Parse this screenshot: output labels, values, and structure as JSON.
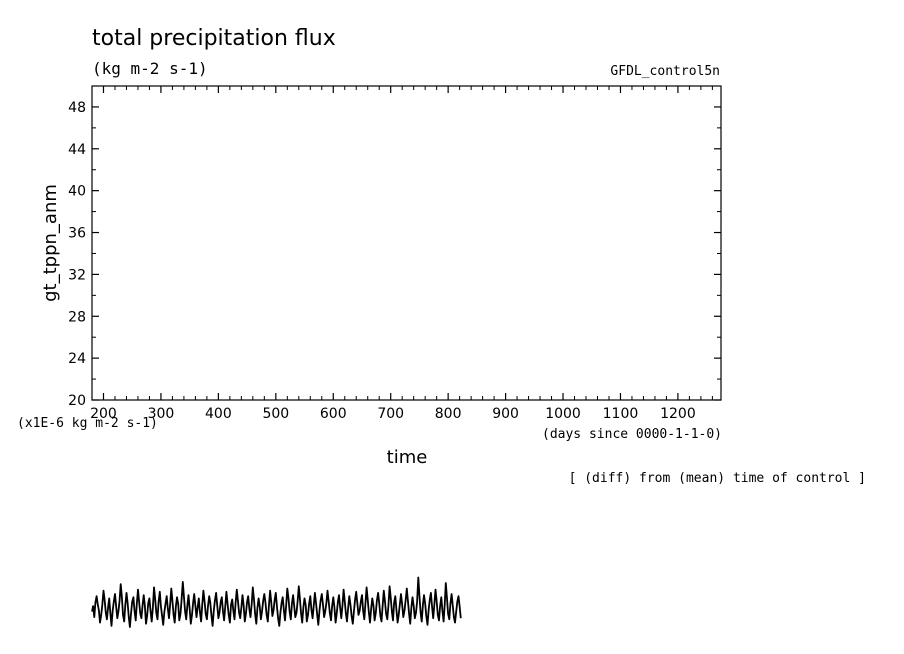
{
  "chart_data": {
    "type": "line",
    "title": "total precipitation flux",
    "units": "(kg m-2 s-1)",
    "dataset": "GFDL_control5n",
    "xlabel": "time",
    "x_units": "(days since 0000-1-1-0)",
    "ylabel": "gt_tppn_anm",
    "y_scale_note": "(x1E-6 kg m-2 s-1)",
    "note": "[ (diff) from (mean) time of control ]",
    "xlim": [
      180,
      1275
    ],
    "ylim": [
      20,
      50
    ],
    "x_ticks": [
      200,
      300,
      400,
      500,
      600,
      700,
      800,
      900,
      1000,
      1100,
      1200
    ],
    "y_ticks": [
      20,
      24,
      28,
      32,
      36,
      40,
      44,
      48
    ],
    "grid": false,
    "series": [
      {
        "x_start": 180,
        "x_step": 2,
        "values": [
          -0.3,
          0.2,
          -0.8,
          0.5,
          1.1,
          0.4,
          -0.2,
          -1.3,
          -0.6,
          0.3,
          1.6,
          0.8,
          -0.4,
          -1.0,
          0.1,
          0.9,
          -0.5,
          -1.6,
          -0.2,
          0.6,
          1.3,
          0.2,
          -0.9,
          -0.3,
          0.7,
          2.2,
          1.0,
          -0.6,
          -1.2,
          0.3,
          1.4,
          0.5,
          -0.8,
          -1.7,
          -0.4,
          0.6,
          1.0,
          -0.2,
          -1.1,
          0.4,
          1.7,
          0.6,
          -0.5,
          -0.9,
          0.2,
          1.2,
          0.3,
          -1.4,
          -0.7,
          0.5,
          0.9,
          -0.3,
          -1.2,
          0.1,
          1.9,
          0.8,
          -0.4,
          -1.0,
          0.6,
          1.5,
          0.2,
          -0.7,
          -1.5,
          -0.3,
          0.4,
          1.1,
          0.0,
          -0.9,
          0.3,
          1.8,
          0.7,
          -0.6,
          -1.3,
          0.2,
          1.0,
          0.4,
          -1.1,
          -0.5,
          0.8,
          2.4,
          1.1,
          -0.3,
          -1.0,
          0.3,
          1.2,
          -0.1,
          -1.4,
          -0.6,
          0.5,
          1.3,
          0.2,
          -0.8,
          0.1,
          0.9,
          -0.4,
          -1.2,
          0.4,
          1.6,
          0.6,
          -0.5,
          -1.0,
          0.2,
          1.1,
          0.5,
          -0.7,
          -1.6,
          -0.2,
          0.7,
          1.4,
          0.3,
          -0.9,
          -0.4,
          0.6,
          1.0,
          -0.3,
          -1.1,
          0.2,
          1.5,
          0.4,
          -0.6,
          -1.3,
          0.3,
          0.8,
          -0.2,
          -1.0,
          0.5,
          1.7,
          0.7,
          -0.4,
          -0.9,
          0.1,
          1.2,
          0.3,
          -1.2,
          -0.5,
          0.6,
          1.1,
          -0.1,
          -0.8,
          0.4,
          1.9,
          0.8,
          -0.5,
          -1.4,
          0.0,
          0.9,
          0.2,
          -1.0,
          -0.3,
          0.7,
          1.3,
          0.5,
          -0.6,
          -1.2,
          0.2,
          1.6,
          0.6,
          -0.7,
          -0.2,
          0.8,
          1.4,
          0.1,
          -0.9,
          -1.6,
          -0.4,
          0.5,
          1.0,
          -0.2,
          -1.1,
          0.3,
          1.8,
          0.9,
          -0.3,
          -1.0,
          0.4,
          1.2,
          0.2,
          -0.8,
          -0.4,
          0.6,
          2.0,
          0.9,
          -0.5,
          -1.3,
          0.1,
          0.9,
          0.3,
          -1.2,
          -0.6,
          0.4,
          1.1,
          -0.1,
          -0.9,
          0.2,
          1.4,
          0.5,
          -0.6,
          -1.5,
          -0.2,
          0.7,
          1.3,
          0.4,
          -0.8,
          -0.3,
          0.5,
          1.6,
          0.6,
          -0.4,
          -1.1,
          0.2,
          1.0,
          0.1,
          -1.3,
          -0.5,
          0.6,
          1.2,
          0.0,
          -0.9,
          0.3,
          1.7,
          0.7,
          -0.5,
          -1.2,
          0.1,
          1.1,
          0.3,
          -0.7,
          -1.4,
          -0.3,
          0.8,
          1.5,
          0.4,
          -0.6,
          -0.2,
          0.6,
          1.2,
          -0.2,
          -1.0,
          0.4,
          1.9,
          0.8,
          -0.4,
          -1.3,
          0.0,
          0.9,
          0.2,
          -1.1,
          -0.4,
          0.7,
          1.4,
          0.5,
          -0.7,
          -1.2,
          0.3,
          1.6,
          0.6,
          -0.5,
          -1.0,
          0.2,
          2.0,
          1.0,
          -0.3,
          -1.1,
          0.5,
          1.1,
          -0.1,
          -1.3,
          -0.6,
          0.4,
          1.3,
          0.3,
          -0.8,
          -0.2,
          0.7,
          1.8,
          0.7,
          -0.5,
          -1.4,
          0.1,
          1.0,
          0.2,
          -0.9,
          -0.4,
          0.6,
          2.8,
          1.2,
          -0.4,
          -1.2,
          0.3,
          1.2,
          0.4,
          -0.7,
          -1.5,
          -0.2,
          0.8,
          1.4,
          0.1,
          -0.9,
          0.4,
          1.7,
          0.6,
          -0.6,
          -1.1,
          0.2,
          1.0,
          -0.2,
          -1.2,
          0.3,
          2.3,
          0.9,
          -0.5,
          -1.0,
          0.4,
          1.3,
          0.3,
          -0.8,
          -1.3,
          -0.3,
          0.6,
          1.1,
          0.2,
          -0.9
        ]
      }
    ]
  }
}
